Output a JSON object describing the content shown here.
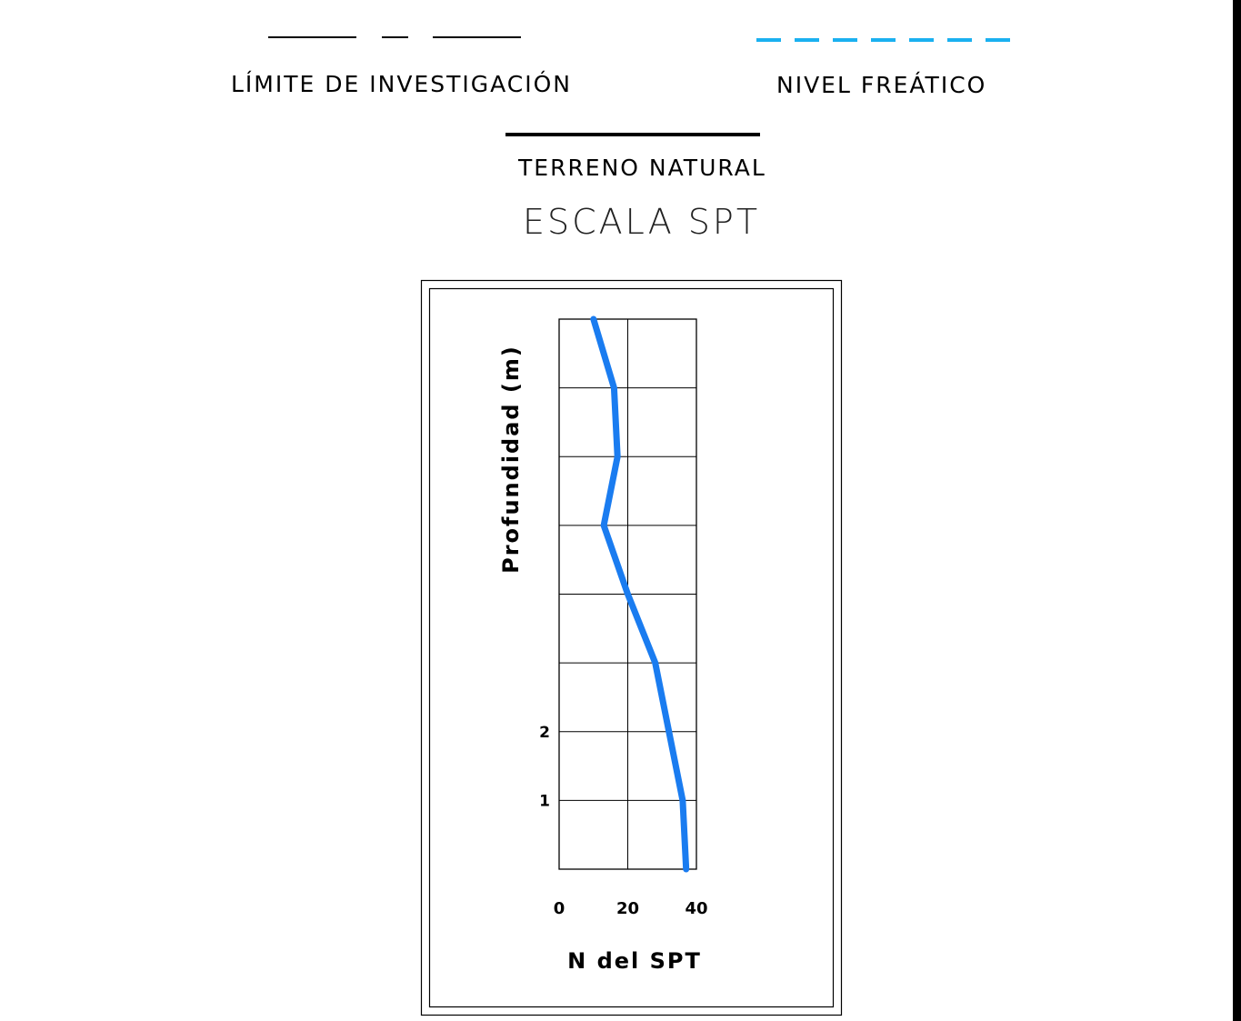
{
  "legend": {
    "limite_label": "LÍMITE DE INVESTIGACIÓN",
    "nivel_label": "NIVEL FREÁTICO",
    "terreno_label": "TERRENO NATURAL",
    "limite_color": "#000000",
    "nivel_color": "#1ab0f0",
    "terreno_color": "#000000"
  },
  "scale_title": "ESCALA SPT",
  "chart_data": {
    "type": "line",
    "xlabel": "N del SPT",
    "ylabel": "Profundidad (m)",
    "xlim": [
      0,
      40
    ],
    "x_ticks": [
      "0",
      "20",
      "40"
    ],
    "y_ticks": [
      "2",
      "1"
    ],
    "grid": true,
    "line_color": "#1a7cf0",
    "series": [
      {
        "x": [
          10,
          16,
          17,
          13,
          20,
          28,
          32,
          36,
          37
        ],
        "depth_level": [
          8,
          7,
          6,
          5,
          4,
          3,
          2,
          1,
          0
        ]
      }
    ]
  }
}
